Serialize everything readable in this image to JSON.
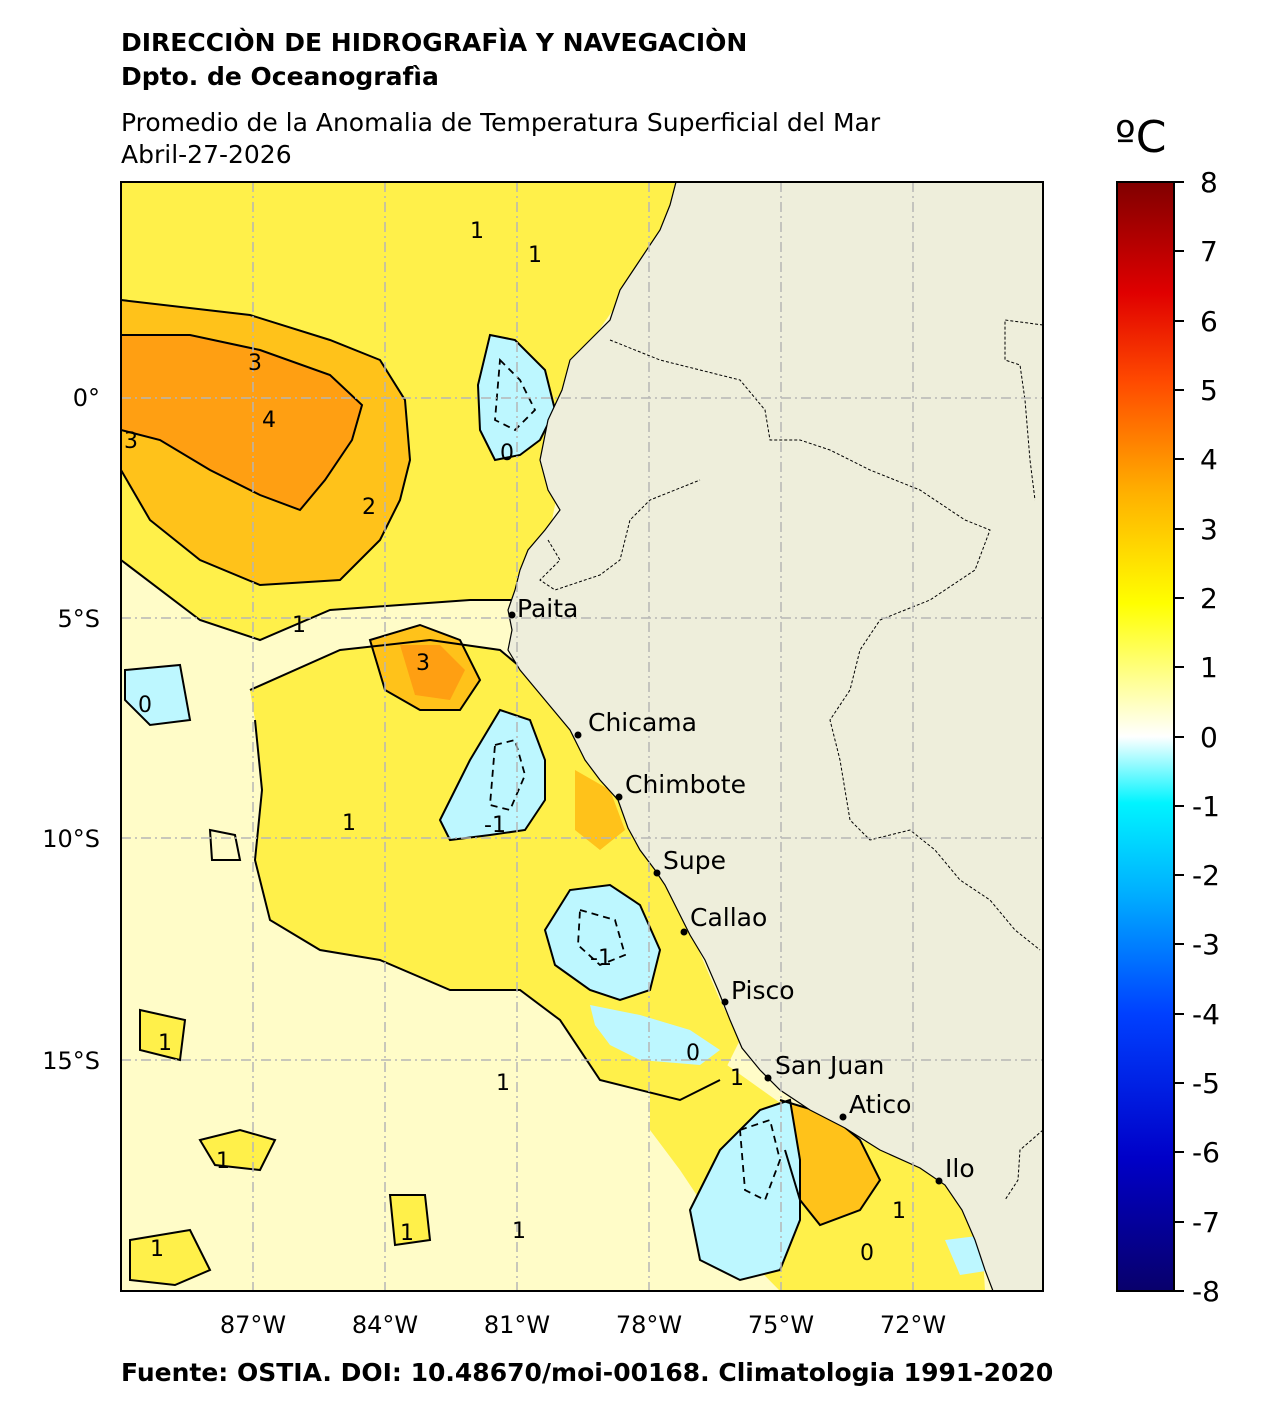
{
  "header": {
    "organization": "DIRECCIÒN DE HIDROGRAFÌA Y NAVEGACIÒN",
    "department": "Dpto. de Oceanografìa",
    "title": "Promedio de la Anomalia de Temperatura Superficial del Mar",
    "date": "Abril-27-2026"
  },
  "footer": "Fuente: OSTIA. DOI: 10.48670/moi-00168. Climatologia 1991-2020",
  "colorbar": {
    "units": "ºC",
    "ticks": [
      "8",
      "7",
      "6",
      "5",
      "4",
      "3",
      "2",
      "1",
      "0",
      "-1",
      "-2",
      "-3",
      "-4",
      "-5",
      "-6",
      "-7",
      "-8"
    ],
    "colors": [
      "#08006b",
      "#0000c8",
      "#0040ff",
      "#00b0ff",
      "#00f4ff",
      "#ffffff",
      "#ffff00",
      "#ffb000",
      "#ff4a00",
      "#e00000",
      "#800000"
    ]
  },
  "map": {
    "x_ticks": [
      "87°W",
      "84°W",
      "81°W",
      "78°W",
      "75°W",
      "72°W"
    ],
    "y_ticks": [
      "0°",
      "5°S",
      "10°S",
      "15°S"
    ],
    "land_color": "#eeeedb",
    "cities": [
      {
        "name": "Paita"
      },
      {
        "name": "Chicama"
      },
      {
        "name": "Chimbote"
      },
      {
        "name": "Supe"
      },
      {
        "name": "Callao"
      },
      {
        "name": "Pisco"
      },
      {
        "name": "San Juan"
      },
      {
        "name": "Atico"
      },
      {
        "name": "Ilo"
      }
    ],
    "contour_labels": [
      "3",
      "4",
      "3",
      "2",
      "1",
      "1",
      "1",
      "3",
      "0",
      "-1",
      "1",
      "-1",
      "0",
      "1",
      "1",
      "1",
      "1",
      "1",
      "1",
      "1",
      "0",
      "0",
      "1"
    ]
  }
}
